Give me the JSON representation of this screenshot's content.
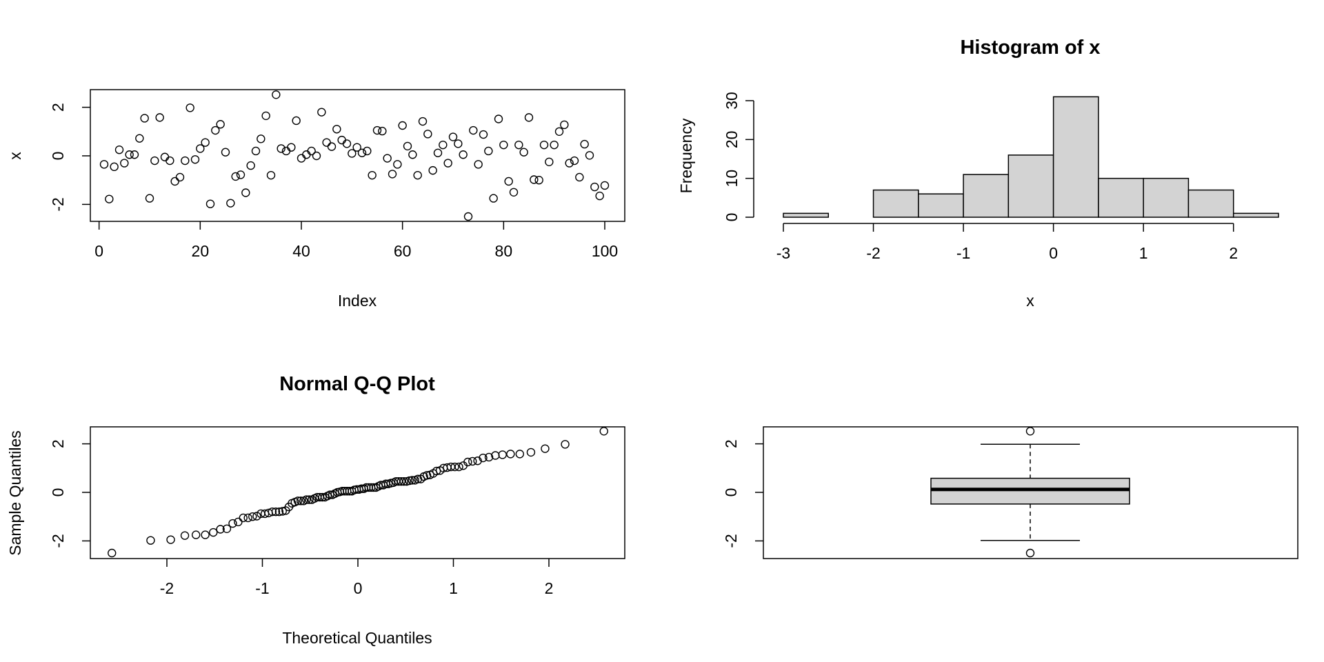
{
  "chart_data": [
    {
      "type": "scatter",
      "title": "",
      "xlabel": "Index",
      "ylabel": "x",
      "xlim": [
        1,
        100
      ],
      "ylim": [
        -2.5,
        2.5
      ],
      "xticks": [
        0,
        20,
        40,
        60,
        80,
        100
      ],
      "yticks": [
        -2,
        0,
        2
      ],
      "x": [
        1,
        2,
        3,
        4,
        5,
        6,
        7,
        8,
        9,
        10,
        11,
        12,
        13,
        14,
        15,
        16,
        17,
        18,
        19,
        20,
        21,
        22,
        23,
        24,
        25,
        26,
        27,
        28,
        29,
        30,
        31,
        32,
        33,
        34,
        35,
        36,
        37,
        38,
        39,
        40,
        41,
        42,
        43,
        44,
        45,
        46,
        47,
        48,
        49,
        50,
        51,
        52,
        53,
        54,
        55,
        56,
        57,
        58,
        59,
        60,
        61,
        62,
        63,
        64,
        65,
        66,
        67,
        68,
        69,
        70,
        71,
        72,
        73,
        74,
        75,
        76,
        77,
        78,
        79,
        80,
        81,
        82,
        83,
        84,
        85,
        86,
        87,
        88,
        89,
        90,
        91,
        92,
        93,
        94,
        95,
        96,
        97,
        98,
        99,
        100
      ],
      "y": [
        -0.35,
        -1.78,
        -0.45,
        0.25,
        -0.3,
        0.05,
        0.05,
        0.72,
        1.55,
        -1.75,
        -0.2,
        1.58,
        -0.05,
        -0.2,
        -1.05,
        -0.88,
        -0.2,
        1.98,
        -0.15,
        0.3,
        0.55,
        -1.98,
        1.05,
        1.3,
        0.15,
        -1.95,
        -0.85,
        -0.78,
        -1.52,
        -0.4,
        0.2,
        0.7,
        1.65,
        -0.8,
        2.52,
        0.3,
        0.2,
        0.35,
        1.45,
        -0.1,
        0.05,
        0.2,
        0.0,
        1.8,
        0.55,
        0.38,
        1.1,
        0.65,
        0.5,
        0.1,
        0.35,
        0.12,
        0.2,
        -0.8,
        1.05,
        1.02,
        -0.1,
        -0.75,
        -0.35,
        1.25,
        0.4,
        0.05,
        -0.8,
        1.42,
        0.9,
        -0.6,
        0.12,
        0.45,
        -0.3,
        0.78,
        0.5,
        0.05,
        -2.5,
        1.05,
        -0.35,
        0.88,
        0.2,
        -1.75,
        1.52,
        0.45,
        -1.05,
        -1.5,
        0.45,
        0.15,
        1.58,
        -0.98,
        -1.0,
        0.45,
        -0.25,
        0.45,
        1.0,
        1.28,
        -0.3,
        -0.2,
        -0.88,
        0.48,
        0.02,
        -1.28,
        -1.65,
        -1.22
      ]
    },
    {
      "type": "bar",
      "title": "Histogram of x",
      "xlabel": "x",
      "ylabel": "Frequency",
      "bins": [
        [
          -3,
          -2.5
        ],
        [
          -2.5,
          -2
        ],
        [
          -2,
          -1.5
        ],
        [
          -1.5,
          -1
        ],
        [
          -1,
          -0.5
        ],
        [
          -0.5,
          0
        ],
        [
          0,
          0.5
        ],
        [
          0.5,
          1
        ],
        [
          1,
          1.5
        ],
        [
          1.5,
          2
        ],
        [
          2,
          2.5
        ]
      ],
      "values": [
        1,
        0,
        7,
        6,
        11,
        16,
        31,
        10,
        10,
        7,
        1
      ],
      "xticks": [
        -3,
        -2,
        -1,
        0,
        1,
        2
      ],
      "yticks": [
        0,
        10,
        20,
        30
      ],
      "ylim": [
        0,
        31
      ]
    },
    {
      "type": "scatter",
      "title": "Normal Q-Q Plot",
      "xlabel": "Theoretical Quantiles",
      "ylabel": "Sample Quantiles",
      "xlim": [
        -2.58,
        2.58
      ],
      "ylim": [
        -2.5,
        2.5
      ],
      "xticks": [
        -2,
        -1,
        0,
        1,
        2
      ],
      "yticks": [
        -2,
        0,
        2
      ]
    },
    {
      "type": "boxplot",
      "title": "",
      "ylim": [
        -2.5,
        2.5
      ],
      "yticks": [
        -2,
        0,
        2
      ],
      "whisker_low": -1.98,
      "q1": -0.48,
      "median": 0.12,
      "q3": 0.58,
      "whisker_high": 1.98,
      "outliers": [
        2.52,
        -2.5
      ]
    }
  ]
}
